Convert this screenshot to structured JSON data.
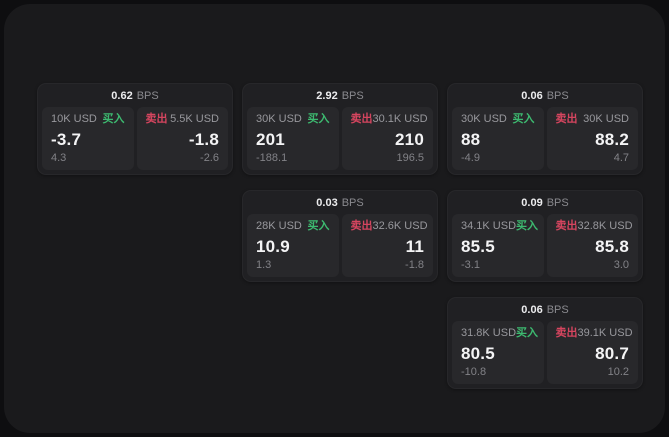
{
  "labels": {
    "buy": "买入",
    "sell": "卖出",
    "bps_unit": "BPS"
  },
  "colors": {
    "outer_bg": "#0e0e10",
    "panel_bg": "#1a1a1c",
    "card_bg": "#202023",
    "subcard_bg": "#28282b",
    "buy": "#3dba70",
    "sell": "#d6455f"
  },
  "cards": [
    {
      "bps": "0.62",
      "buy": {
        "amount": "10K USD",
        "price": "-3.7",
        "change": "4.3"
      },
      "sell": {
        "amount": "5.5K USD",
        "price": "-1.8",
        "change": "-2.6"
      }
    },
    {
      "bps": "2.92",
      "buy": {
        "amount": "30K USD",
        "price": "201",
        "change": "-188.1"
      },
      "sell": {
        "amount": "30.1K USD",
        "price": "210",
        "change": "196.5"
      }
    },
    {
      "bps": "0.06",
      "buy": {
        "amount": "30K USD",
        "price": "88",
        "change": "-4.9"
      },
      "sell": {
        "amount": "30K USD",
        "price": "88.2",
        "change": "4.7"
      }
    },
    {
      "bps": "0.03",
      "buy": {
        "amount": "28K USD",
        "price": "10.9",
        "change": "1.3"
      },
      "sell": {
        "amount": "32.6K USD",
        "price": "11",
        "change": "-1.8"
      }
    },
    {
      "bps": "0.09",
      "buy": {
        "amount": "34.1K USD",
        "price": "85.5",
        "change": "-3.1"
      },
      "sell": {
        "amount": "32.8K USD",
        "price": "85.8",
        "change": "3.0"
      }
    },
    {
      "bps": "0.06",
      "buy": {
        "amount": "31.8K USD",
        "price": "80.5",
        "change": "-10.8"
      },
      "sell": {
        "amount": "39.1K USD",
        "price": "80.7",
        "change": "10.2"
      }
    }
  ]
}
